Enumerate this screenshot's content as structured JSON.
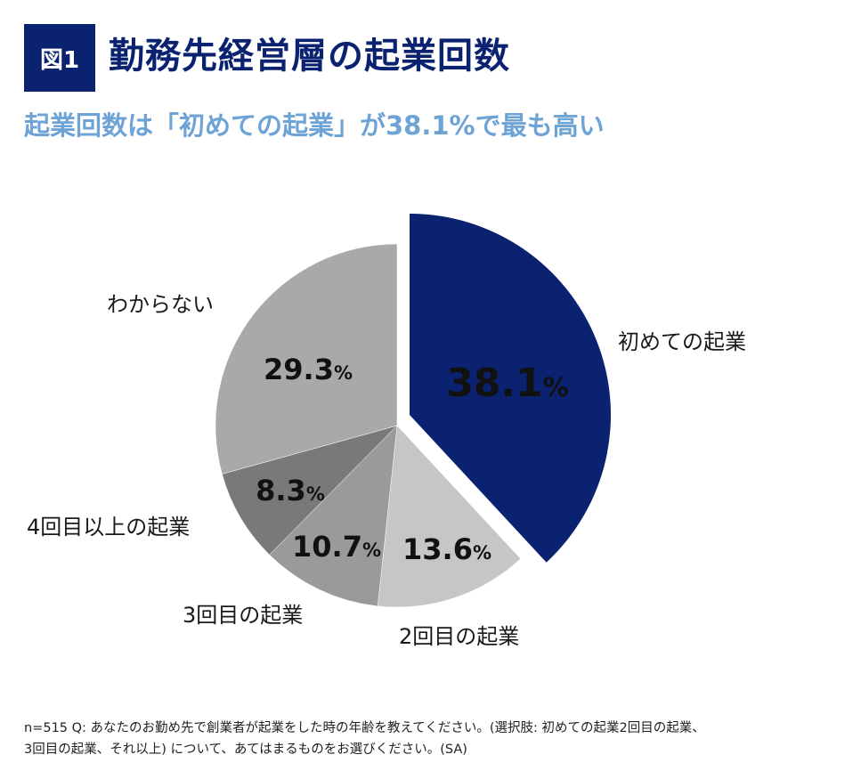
{
  "header": {
    "badge": "図1",
    "title": "勤務先経営層の起業回数",
    "subtitle": "起業回数は「初めての起業」が38.1%で最も高い"
  },
  "chart_data": {
    "type": "pie",
    "title": "勤務先経営層の起業回数",
    "start": "top",
    "direction": "clockwise",
    "slices": [
      {
        "label": "初めての起業",
        "value": 38.1,
        "display": "38.1",
        "color": "#0b2270",
        "exploded": true
      },
      {
        "label": "2回目の起業",
        "value": 13.6,
        "display": "13.6",
        "color": "#c6c6c6"
      },
      {
        "label": "3回目の起業",
        "value": 10.7,
        "display": "10.7",
        "color": "#9a9a9a"
      },
      {
        "label": "4回目以上の起業",
        "value": 8.3,
        "display": "8.3",
        "color": "#797979"
      },
      {
        "label": "わからない",
        "value": 29.3,
        "display": "29.3",
        "color": "#a9a9a9"
      }
    ],
    "unit": "%"
  },
  "footnote": {
    "line1": "n=515 Q: あなたのお勤め先で創業者が起業をした時の年齢を教えてください。(選択肢: 初めての起業2回目の起業、",
    "line2": "3回目の起業、それ以上) について、あてはまるものをお選びください。(SA)"
  }
}
